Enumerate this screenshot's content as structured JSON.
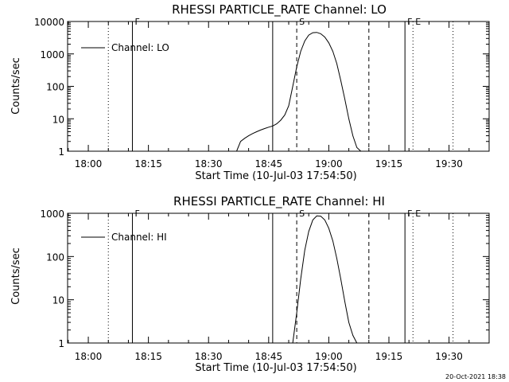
{
  "chart_data": [
    {
      "type": "line",
      "title": "RHESSI PARTICLE_RATE Channel: LO",
      "xlabel": "Start Time (10-Jul-03 17:54:50)",
      "ylabel": "Counts/sec",
      "y_scale": "log",
      "ylim": [
        1,
        10000
      ],
      "xlim": [
        "17:54:50",
        "19:40:00"
      ],
      "x_ticks": [
        "18:00",
        "18:15",
        "18:30",
        "18:45",
        "19:00",
        "19:15",
        "19:30"
      ],
      "y_ticks": [
        "1",
        "10",
        "100",
        "1000",
        "10000"
      ],
      "legend": {
        "position": "top-left",
        "entries": [
          "Channel: LO"
        ]
      },
      "series": [
        {
          "name": "Channel: LO",
          "x": [
            "18:37",
            "18:38",
            "18:39",
            "18:40",
            "18:41",
            "18:42",
            "18:43",
            "18:44",
            "18:45",
            "18:46",
            "18:47",
            "18:48",
            "18:49",
            "18:50",
            "18:51",
            "18:52",
            "18:53",
            "18:54",
            "18:55",
            "18:56",
            "18:57",
            "18:58",
            "18:59",
            "19:00",
            "19:01",
            "19:02",
            "19:03",
            "19:04",
            "19:05",
            "19:06",
            "19:07",
            "19:08"
          ],
          "values": [
            1,
            2,
            2.5,
            3,
            3.5,
            4,
            4.5,
            5,
            5.5,
            6,
            7,
            9,
            13,
            25,
            100,
            400,
            1200,
            2500,
            3800,
            4500,
            4600,
            4200,
            3300,
            2200,
            1200,
            500,
            150,
            40,
            10,
            3,
            1.3,
            1
          ]
        }
      ],
      "markers": [
        {
          "label": "F",
          "time": "18:11",
          "style": "solid"
        },
        {
          "label": "",
          "time": "18:05",
          "style": "dotted"
        },
        {
          "label": "",
          "time": "18:46",
          "style": "solid"
        },
        {
          "label": "S",
          "time": "18:52",
          "style": "dashed"
        },
        {
          "label": "",
          "time": "19:10",
          "style": "dashed"
        },
        {
          "label": "F",
          "time": "19:19",
          "style": "solid"
        },
        {
          "label": "E",
          "time": "19:21",
          "style": "dotted"
        },
        {
          "label": "",
          "time": "19:31",
          "style": "dotted"
        }
      ]
    },
    {
      "type": "line",
      "title": "RHESSI PARTICLE_RATE Channel: HI",
      "xlabel": "Start Time (10-Jul-03 17:54:50)",
      "ylabel": "Counts/sec",
      "y_scale": "log",
      "ylim": [
        1,
        1000
      ],
      "xlim": [
        "17:54:50",
        "19:40:00"
      ],
      "x_ticks": [
        "18:00",
        "18:15",
        "18:30",
        "18:45",
        "19:00",
        "19:15",
        "19:30"
      ],
      "y_ticks": [
        "1",
        "10",
        "100",
        "1000"
      ],
      "legend": {
        "position": "top-left",
        "entries": [
          "Channel: HI"
        ]
      },
      "series": [
        {
          "name": "Channel: HI",
          "x": [
            "18:51",
            "18:52",
            "18:53",
            "18:54",
            "18:55",
            "18:56",
            "18:57",
            "18:58",
            "18:59",
            "19:00",
            "19:01",
            "19:02",
            "19:03",
            "19:04",
            "19:05",
            "19:06",
            "19:07"
          ],
          "values": [
            1,
            5,
            30,
            140,
            380,
            700,
            870,
            860,
            700,
            450,
            230,
            90,
            30,
            9,
            3,
            1.5,
            1
          ]
        }
      ],
      "markers": [
        {
          "label": "F",
          "time": "18:11",
          "style": "solid"
        },
        {
          "label": "",
          "time": "18:05",
          "style": "dotted"
        },
        {
          "label": "",
          "time": "18:46",
          "style": "solid"
        },
        {
          "label": "S",
          "time": "18:52",
          "style": "dashed"
        },
        {
          "label": "",
          "time": "19:10",
          "style": "dashed"
        },
        {
          "label": "F",
          "time": "19:19",
          "style": "solid"
        },
        {
          "label": "E",
          "time": "19:21",
          "style": "dotted"
        },
        {
          "label": "",
          "time": "19:31",
          "style": "dotted"
        }
      ]
    }
  ],
  "footer": {
    "timestamp": "20-Oct-2021 18:38"
  }
}
